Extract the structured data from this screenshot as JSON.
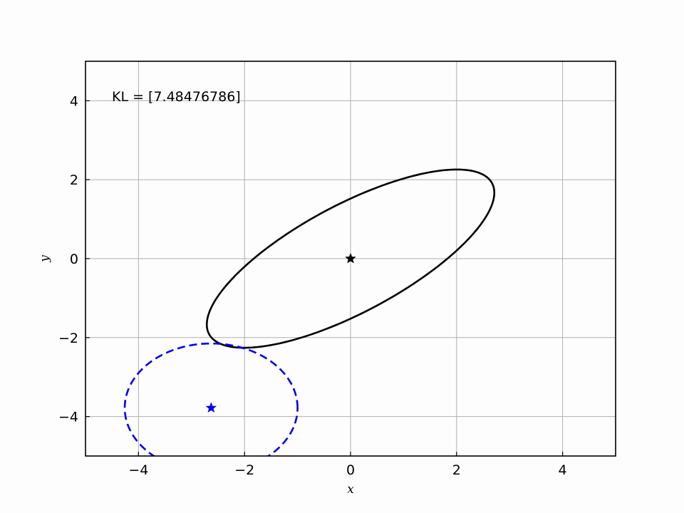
{
  "chart_data": {
    "type": "scatter",
    "title": "",
    "xlabel": "x",
    "ylabel": "y",
    "xlim": [
      -5,
      5
    ],
    "ylim": [
      -5,
      5
    ],
    "xticks": [
      -4,
      -2,
      0,
      2,
      4
    ],
    "yticks": [
      -4,
      -2,
      0,
      2,
      4
    ],
    "xtick_labels": [
      "−4",
      "−2",
      "0",
      "2",
      "4"
    ],
    "ytick_labels": [
      "−4",
      "−2",
      "0",
      "2",
      "4"
    ],
    "grid": true,
    "annotation": "KL = [7.48476786]",
    "series": [
      {
        "style": "solid",
        "color": "#000000",
        "center": [
          0,
          0
        ],
        "marker": "star",
        "ellipse": {
          "semi_major": 3.3,
          "semi_minor": 1.25,
          "angle_deg": 38
        }
      },
      {
        "style": "dashed",
        "color": "#0000ee",
        "center": [
          -2.63,
          -3.78
        ],
        "marker": "star",
        "ellipse": {
          "semi_major": 1.63,
          "semi_minor": 1.63,
          "angle_deg": 0
        }
      }
    ]
  }
}
